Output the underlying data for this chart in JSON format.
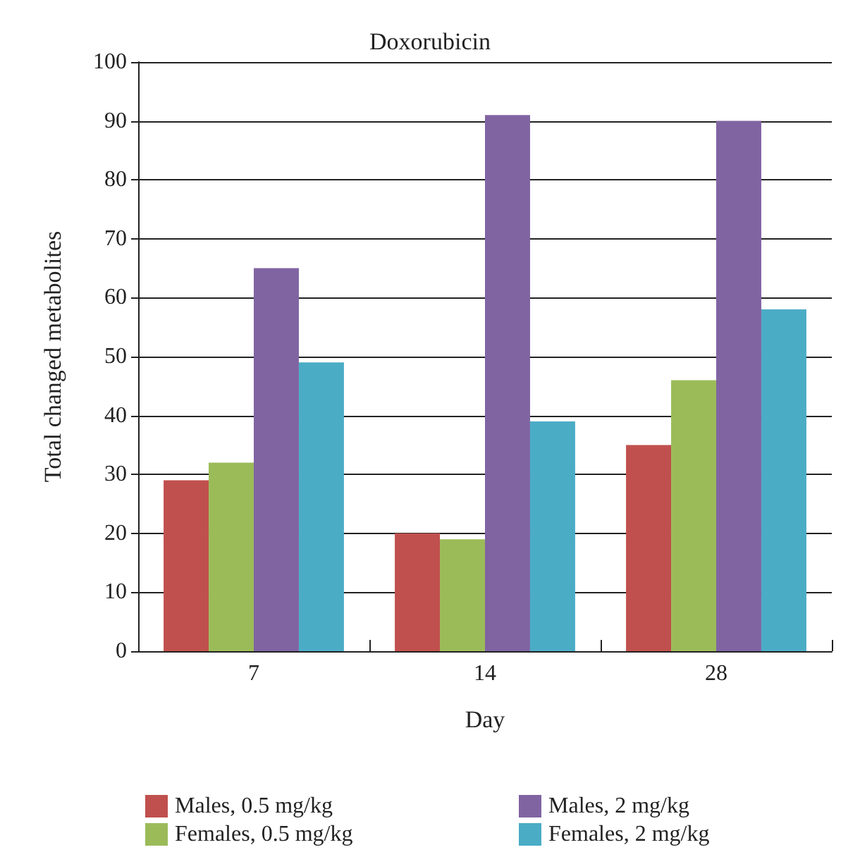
{
  "chart_data": {
    "type": "bar",
    "title": "Doxorubicin",
    "xlabel": "Day",
    "ylabel": "Total changed metabolites",
    "categories": [
      "7",
      "14",
      "28"
    ],
    "series": [
      {
        "name": "Males, 0.5 mg/kg",
        "color": "#c0504d",
        "values": [
          29,
          20,
          35
        ]
      },
      {
        "name": "Females, 0.5 mg/kg",
        "color": "#9bbb59",
        "values": [
          32,
          19,
          46
        ]
      },
      {
        "name": "Males, 2 mg/kg",
        "color": "#8064a2",
        "values": [
          65,
          91,
          90
        ]
      },
      {
        "name": "Females, 2 mg/kg",
        "color": "#4bacc6",
        "values": [
          49,
          39,
          58
        ]
      }
    ],
    "ylim": [
      0,
      100
    ],
    "yticks": [
      0,
      10,
      20,
      30,
      40,
      50,
      60,
      70,
      80,
      90,
      100
    ],
    "grid": "y",
    "legend": "bottom"
  }
}
